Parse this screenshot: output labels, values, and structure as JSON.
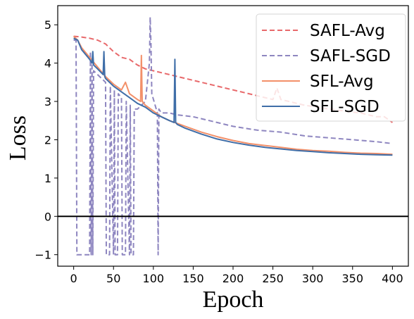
{
  "chart_data": {
    "type": "line",
    "title": "",
    "xlabel": "Epoch",
    "ylabel": "Loss",
    "xlim": [
      -20,
      420
    ],
    "ylim": [
      -1.3,
      5.5
    ],
    "xticks": [
      "0",
      "50",
      "100",
      "150",
      "200",
      "250",
      "300",
      "350",
      "400"
    ],
    "yticks": [
      "−1",
      "0",
      "1",
      "2",
      "3",
      "4",
      "5"
    ],
    "reference_line_y": 0,
    "grid": false,
    "legend_position": "top-right",
    "series": [
      {
        "name": "SAFL-Avg",
        "color": "#e8696b",
        "style": "dashed",
        "x": [
          0,
          10,
          20,
          30,
          40,
          50,
          60,
          70,
          80,
          90,
          100,
          110,
          120,
          130,
          140,
          150,
          160,
          170,
          180,
          190,
          200,
          210,
          220,
          230,
          240,
          250,
          255,
          260,
          270,
          280,
          290,
          300,
          310,
          320,
          330,
          340,
          350,
          360,
          370,
          380,
          390,
          400
        ],
        "y": [
          4.7,
          4.68,
          4.65,
          4.6,
          4.5,
          4.3,
          4.15,
          4.1,
          3.95,
          3.85,
          3.8,
          3.75,
          3.7,
          3.65,
          3.6,
          3.55,
          3.5,
          3.45,
          3.4,
          3.35,
          3.3,
          3.25,
          3.2,
          3.15,
          3.1,
          3.05,
          3.35,
          3.05,
          3.0,
          2.95,
          2.9,
          2.87,
          2.85,
          2.8,
          2.78,
          2.75,
          2.72,
          2.7,
          2.65,
          2.6,
          2.6,
          2.45
        ]
      },
      {
        "name": "SAFL-SGD",
        "color": "#8e86c0",
        "style": "dashed",
        "x": [
          0,
          3,
          4,
          20,
          21,
          22,
          23,
          24,
          25,
          40,
          41,
          45,
          46,
          50,
          51,
          52,
          55,
          56,
          60,
          61,
          62,
          65,
          66,
          70,
          71,
          72,
          75,
          76,
          80,
          90,
          95,
          96,
          97,
          98,
          105,
          106,
          107,
          110,
          120,
          130,
          150,
          170,
          200,
          230,
          260,
          290,
          320,
          350,
          380,
          400
        ],
        "y": [
          4.6,
          4.6,
          -1.0,
          -1.0,
          4.3,
          -1.0,
          4.0,
          -1.0,
          3.8,
          3.5,
          -1.0,
          -1.0,
          3.4,
          -1.0,
          3.3,
          -1.0,
          -1.0,
          3.2,
          3.1,
          -1.0,
          -1.0,
          -1.0,
          3.0,
          -1.0,
          2.9,
          -1.0,
          -1.0,
          2.8,
          2.8,
          3.0,
          4.0,
          5.2,
          4.5,
          3.2,
          2.7,
          -1.0,
          2.8,
          2.7,
          2.7,
          2.65,
          2.6,
          2.5,
          2.35,
          2.25,
          2.2,
          2.1,
          2.05,
          2.0,
          1.95,
          1.9
        ]
      },
      {
        "name": "SFL-Avg",
        "color": "#f39069",
        "style": "solid",
        "x": [
          0,
          5,
          10,
          20,
          30,
          40,
          50,
          60,
          65,
          70,
          80,
          84,
          85,
          86,
          90,
          100,
          110,
          120,
          140,
          160,
          180,
          200,
          220,
          240,
          260,
          280,
          300,
          320,
          340,
          360,
          380,
          400
        ],
        "y": [
          4.7,
          4.6,
          4.4,
          4.15,
          3.9,
          3.65,
          3.45,
          3.3,
          3.5,
          3.2,
          3.05,
          3.0,
          4.2,
          3.0,
          2.9,
          2.75,
          2.6,
          2.5,
          2.35,
          2.2,
          2.08,
          1.98,
          1.9,
          1.85,
          1.8,
          1.75,
          1.72,
          1.7,
          1.67,
          1.65,
          1.64,
          1.62
        ]
      },
      {
        "name": "SFL-SGD",
        "color": "#3f6ea8",
        "style": "solid",
        "x": [
          0,
          5,
          10,
          20,
          23,
          24,
          25,
          30,
          37,
          38,
          39,
          40,
          50,
          60,
          70,
          80,
          90,
          100,
          110,
          120,
          126,
          127,
          128,
          130,
          140,
          160,
          180,
          200,
          220,
          240,
          260,
          280,
          300,
          320,
          340,
          360,
          380,
          400
        ],
        "y": [
          4.65,
          4.6,
          4.35,
          4.1,
          4.0,
          4.3,
          3.95,
          3.85,
          3.7,
          4.3,
          3.65,
          3.6,
          3.4,
          3.25,
          3.1,
          2.95,
          2.85,
          2.7,
          2.6,
          2.5,
          2.45,
          4.1,
          2.45,
          2.4,
          2.3,
          2.15,
          2.02,
          1.93,
          1.86,
          1.8,
          1.76,
          1.72,
          1.69,
          1.66,
          1.64,
          1.62,
          1.61,
          1.6
        ]
      }
    ]
  }
}
